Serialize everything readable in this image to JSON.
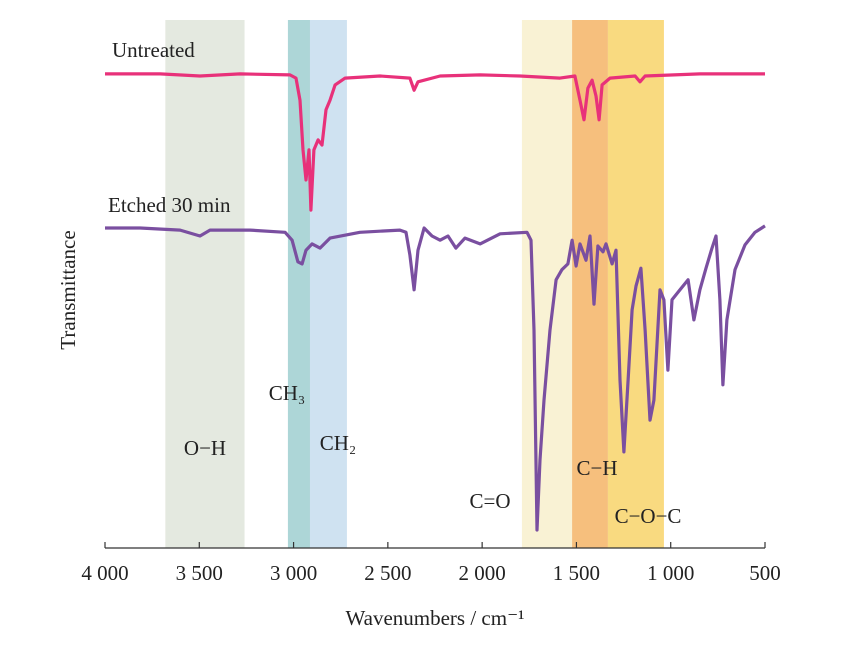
{
  "chart_data": {
    "type": "line",
    "xlabel": "Wavenumbers / cm⁻¹",
    "ylabel": "Transmittance",
    "xlim": [
      4000,
      500
    ],
    "ylim": [
      0,
      100
    ],
    "xticks": [
      {
        "value": 4000,
        "label": "4 000"
      },
      {
        "value": 3500,
        "label": "3 500"
      },
      {
        "value": 3000,
        "label": "3 000"
      },
      {
        "value": 2500,
        "label": "2 500"
      },
      {
        "value": 2000,
        "label": "2 000"
      },
      {
        "value": 1500,
        "label": "1 500"
      },
      {
        "value": 1000,
        "label": "1 000"
      },
      500
    ],
    "bands": [
      {
        "label": "O−H",
        "range": [
          3680,
          3260
        ],
        "color": "#dfe5da"
      },
      {
        "label": "CH₃",
        "range": [
          3030,
          2913
        ],
        "color": "#9fcfd0"
      },
      {
        "label": "CH₂",
        "range": [
          2913,
          2717
        ],
        "color": "#c7ddee"
      },
      {
        "label": "C=O",
        "range": [
          1789,
          1523
        ],
        "color": "#f8f0cc"
      },
      {
        "label": "C−H",
        "range": [
          1523,
          1333
        ],
        "color": "#f5b466"
      },
      {
        "label": "C−O−C",
        "range": [
          1333,
          1036
        ],
        "color": "#f8d46a"
      }
    ],
    "series": [
      {
        "name": "Untreated",
        "color": "#e8317a",
        "x": [
          4000,
          3708,
          3496,
          3284,
          3019,
          2987,
          2966,
          2950,
          2934,
          2918,
          2908,
          2892,
          2870,
          2849,
          2828,
          2807,
          2780,
          2727,
          2542,
          2383,
          2361,
          2340,
          2223,
          2011,
          1799,
          1587,
          1508,
          1481,
          1460,
          1439,
          1417,
          1396,
          1380,
          1364,
          1322,
          1189,
          1163,
          1136,
          845,
          500
        ],
        "values": [
          89.8,
          89.8,
          89.4,
          89.8,
          89.6,
          89.0,
          84.8,
          75.4,
          69.7,
          75.4,
          64.0,
          75.4,
          77.3,
          76.3,
          83.0,
          84.8,
          87.7,
          89.0,
          89.4,
          89.0,
          86.7,
          88.3,
          89.4,
          89.6,
          89.4,
          89.0,
          89.4,
          84.8,
          81.1,
          87.1,
          88.6,
          85.6,
          81.1,
          87.7,
          89.0,
          89.4,
          88.3,
          89.4,
          89.8,
          89.8
        ]
      },
      {
        "name": "Etched 30 min",
        "color": "#7a4fa0",
        "x": [
          4000,
          3814,
          3602,
          3496,
          3443,
          3231,
          3045,
          3008,
          2977,
          2955,
          2934,
          2902,
          2860,
          2807,
          2648,
          2436,
          2404,
          2383,
          2361,
          2340,
          2308,
          2266,
          2223,
          2181,
          2139,
          2091,
          2011,
          1905,
          1762,
          1741,
          1725,
          1709,
          1693,
          1672,
          1640,
          1608,
          1577,
          1545,
          1523,
          1502,
          1481,
          1449,
          1428,
          1407,
          1386,
          1359,
          1343,
          1311,
          1290,
          1269,
          1248,
          1226,
          1205,
          1184,
          1158,
          1136,
          1110,
          1089,
          1057,
          1036,
          1015,
          993,
          951,
          908,
          877,
          845,
          813,
          781,
          760,
          739,
          723,
          702,
          659,
          606,
          553,
          500
        ],
        "values": [
          60.6,
          60.6,
          60.2,
          59.1,
          60.2,
          60.2,
          59.8,
          58.3,
          54.2,
          53.8,
          56.4,
          57.6,
          56.8,
          58.7,
          59.8,
          60.2,
          59.8,
          55.5,
          48.9,
          56.4,
          60.6,
          59.1,
          58.3,
          59.1,
          56.8,
          58.7,
          57.6,
          59.5,
          59.8,
          58.3,
          41.3,
          3.4,
          16.7,
          28.0,
          41.3,
          50.8,
          52.7,
          53.8,
          58.3,
          53.4,
          57.6,
          54.5,
          59.1,
          46.2,
          57.2,
          56.1,
          57.6,
          53.8,
          56.4,
          31.8,
          18.2,
          31.8,
          45.1,
          49.6,
          53.0,
          41.3,
          24.2,
          28.0,
          48.9,
          47.0,
          33.7,
          47.0,
          48.9,
          50.8,
          43.2,
          48.9,
          53.0,
          56.8,
          59.1,
          47.0,
          30.9,
          43.2,
          52.7,
          57.4,
          59.8,
          61.0
        ]
      }
    ]
  }
}
